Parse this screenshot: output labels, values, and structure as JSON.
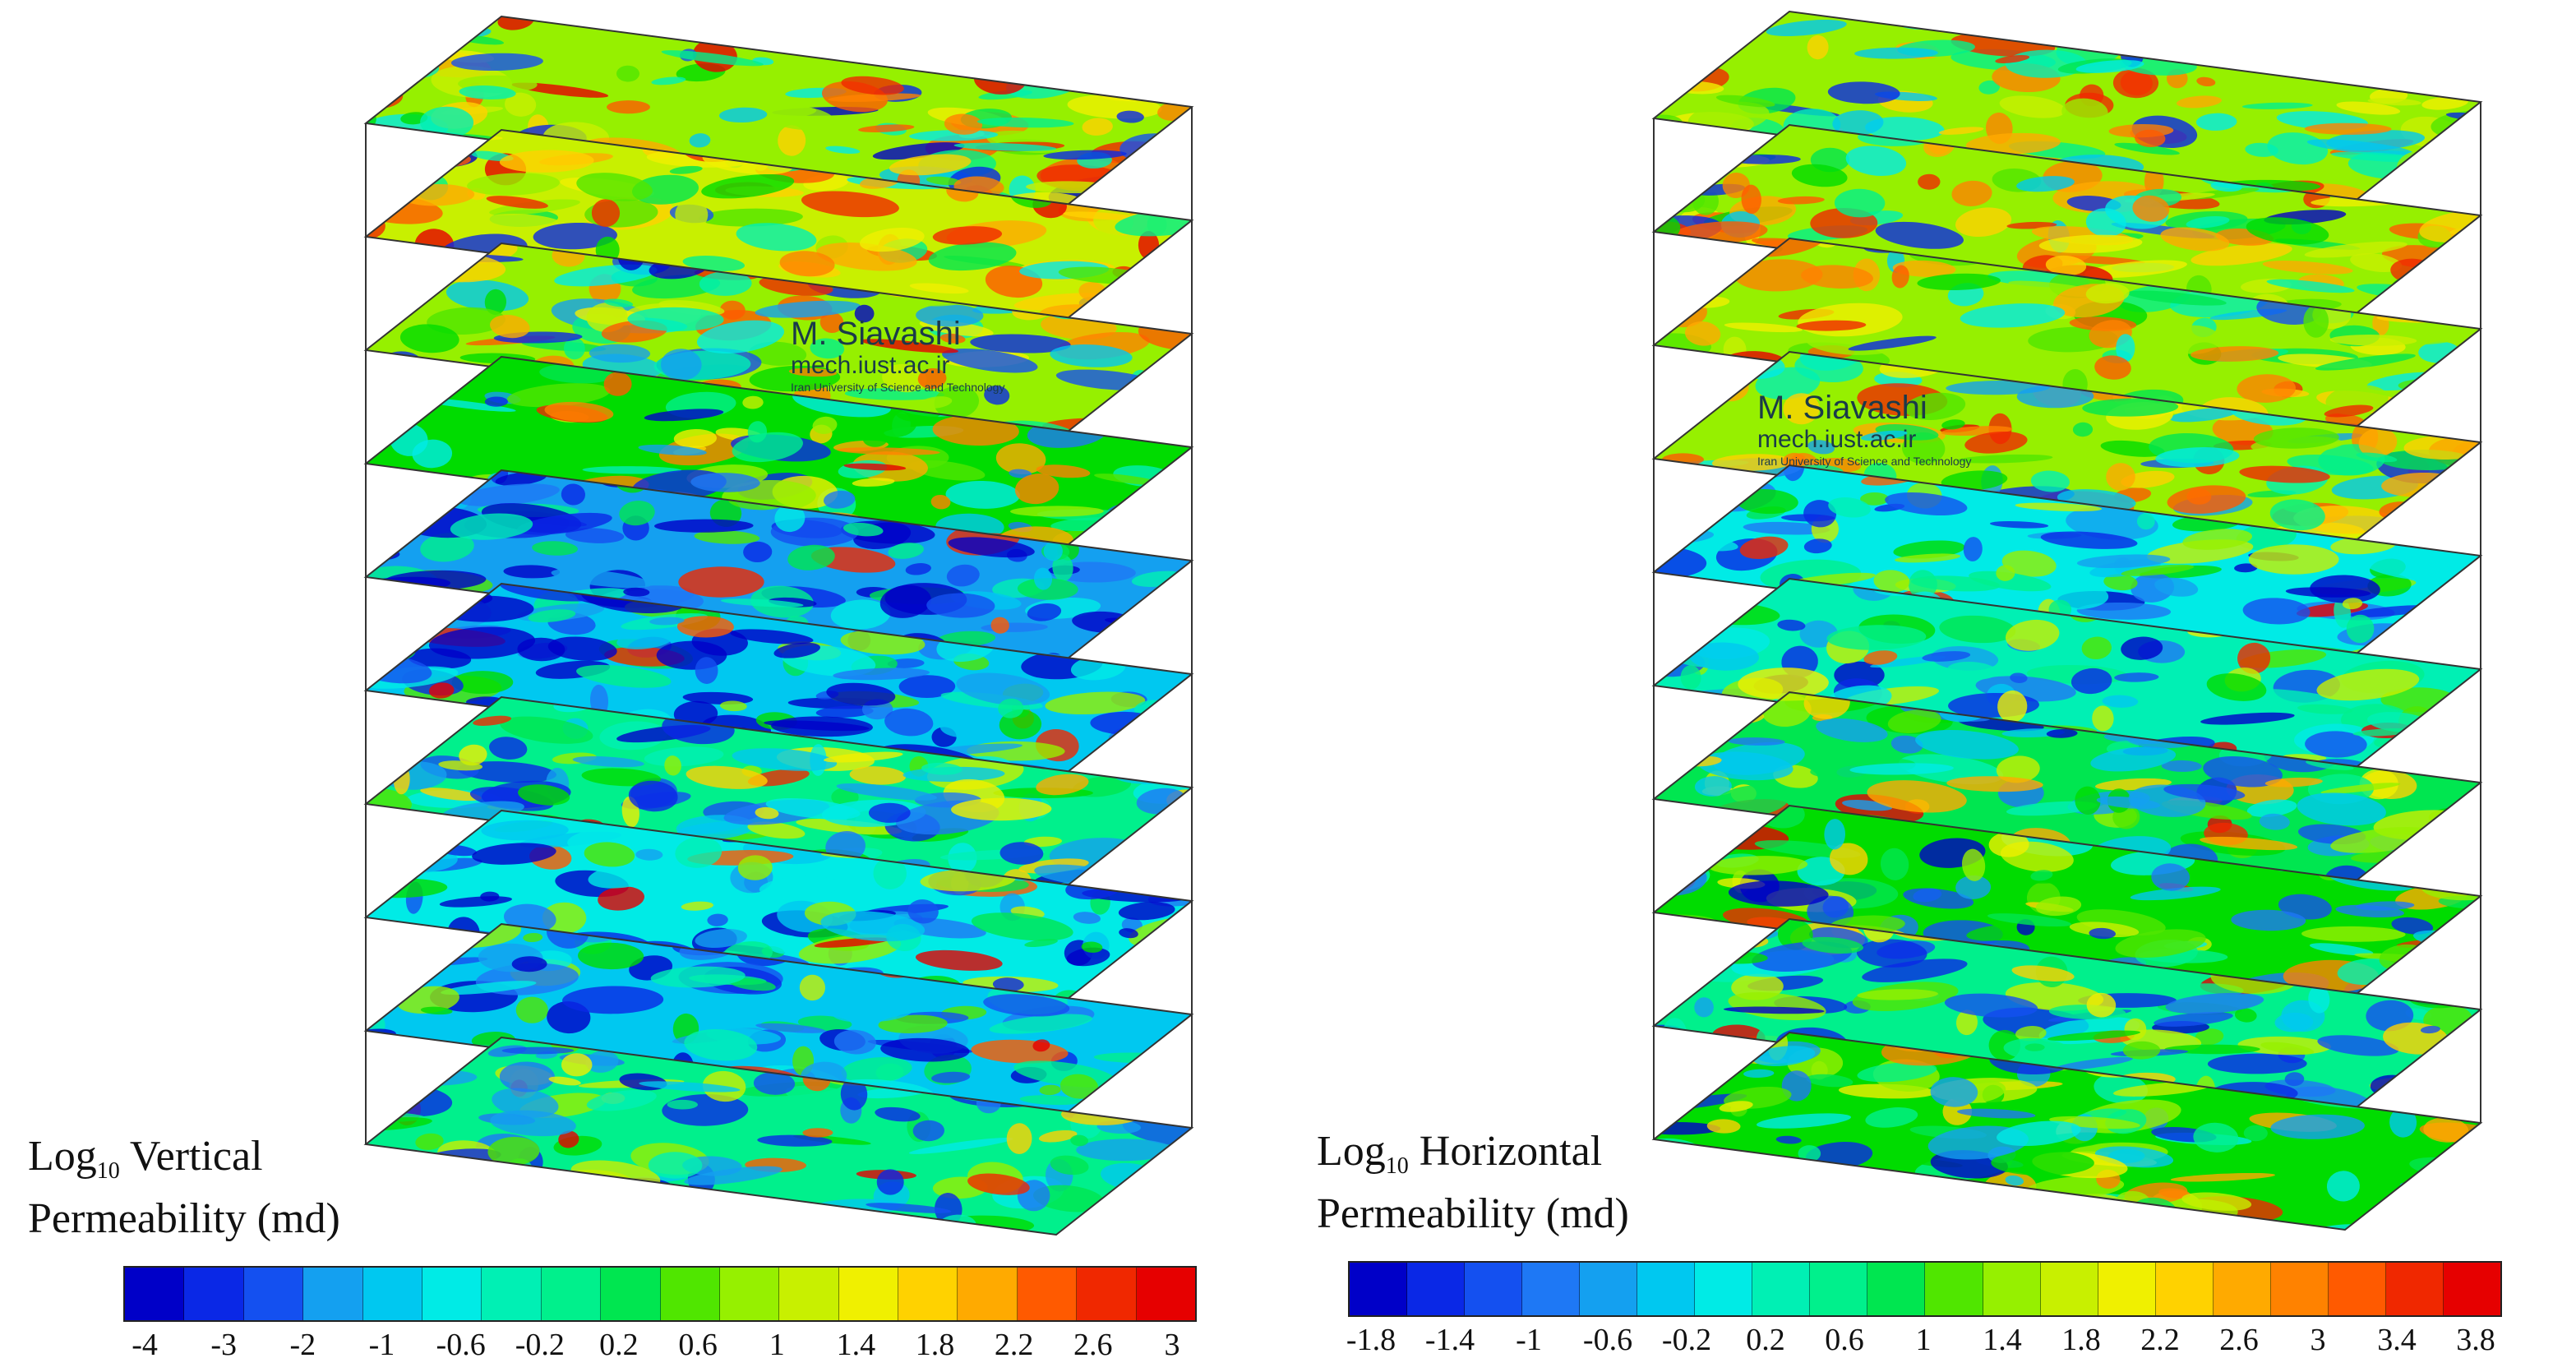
{
  "panels": [
    {
      "id": "vertical",
      "title_prefix": "Log",
      "title_sub": "10",
      "title_rest": " Vertical",
      "title_line2": "Permeability (md)",
      "ticks": [
        "-4",
        "-3",
        "-2",
        "-1",
        "-0.6",
        "-0.2",
        "0.2",
        "0.6",
        "1",
        "1.4",
        "1.8",
        "2.2",
        "2.6",
        "3"
      ],
      "watermark": {
        "name": "M. Siavashi",
        "url": "mech.iust.ac.ir",
        "institution": "Iran University of Science and Technology"
      },
      "layers": [
        0.62,
        0.66,
        0.58,
        0.5,
        0.18,
        0.24,
        0.42,
        0.3,
        0.26,
        0.4
      ]
    },
    {
      "id": "horizontal",
      "title_prefix": "Log",
      "title_sub": "10",
      "title_rest": " Horizontal",
      "title_line2": "Permeability (md)",
      "ticks": [
        "-1.8",
        "-1.4",
        "-1",
        "-0.6",
        "-0.2",
        "0.2",
        "0.6",
        "1",
        "1.4",
        "1.8",
        "2.2",
        "2.6",
        "3",
        "3.4",
        "3.8"
      ],
      "watermark": {
        "name": "M. Siavashi",
        "url": "mech.iust.ac.ir",
        "institution": "Iran University of Science and Technology"
      },
      "layers": [
        0.6,
        0.62,
        0.62,
        0.58,
        0.3,
        0.36,
        0.46,
        0.48,
        0.4,
        0.5
      ]
    }
  ],
  "colormap": [
    "#0000c8",
    "#0a28e6",
    "#1450f0",
    "#1e78f5",
    "#14a0f0",
    "#00c8f0",
    "#00ebe6",
    "#00f0b4",
    "#00f08c",
    "#00e650",
    "#00dc00",
    "#50e600",
    "#96f000",
    "#c8f000",
    "#f0f000",
    "#ffd200",
    "#ffaa00",
    "#ff8200",
    "#ff5a00",
    "#f02800",
    "#e60000"
  ]
}
